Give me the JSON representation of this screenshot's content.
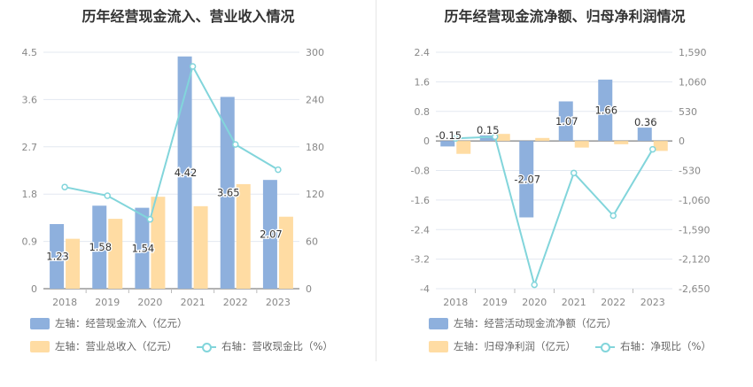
{
  "colors": {
    "bar_primary": "#8eb0dd",
    "bar_secondary": "#ffdca3",
    "line": "#82d5db",
    "axis_text": "#888888",
    "grid": "#e3e8f0"
  },
  "chart_data": [
    {
      "type": "bar",
      "title": "历年经营现金流入、营业收入情况",
      "categories": [
        "2018",
        "2019",
        "2020",
        "2021",
        "2022",
        "2023"
      ],
      "left_axis": {
        "min": 0,
        "max": 4.5,
        "ticks": [
          "0",
          "0.9",
          "1.8",
          "2.7",
          "3.6",
          "4.5"
        ]
      },
      "right_axis": {
        "min": 0,
        "max": 300,
        "ticks": [
          "0",
          "60",
          "120",
          "180",
          "240",
          "300"
        ]
      },
      "series": [
        {
          "name": "左轴：经营现金流入（亿元）",
          "type": "bar",
          "axis": "left",
          "values": [
            1.23,
            1.58,
            1.54,
            4.42,
            3.65,
            2.07
          ],
          "labels": [
            "1.23",
            "1.58",
            "1.54",
            "4.42",
            "3.65",
            "2.07"
          ]
        },
        {
          "name": "左轴：营业总收入（亿元）",
          "type": "bar",
          "axis": "left",
          "values": [
            0.95,
            1.33,
            1.75,
            1.57,
            1.99,
            1.37
          ]
        },
        {
          "name": "右轴：营收现金比（%）",
          "type": "line",
          "axis": "right",
          "values": [
            129,
            118,
            88,
            282,
            183,
            151
          ]
        }
      ],
      "grid": true,
      "legend_position": "bottom"
    },
    {
      "type": "bar",
      "title": "历年经营现金流净额、归母净利润情况",
      "categories": [
        "2018",
        "2019",
        "2020",
        "2021",
        "2022",
        "2023"
      ],
      "left_axis": {
        "min": -4,
        "max": 2.4,
        "ticks": [
          "-4",
          "-3.2",
          "-2.4",
          "-1.6",
          "-0.8",
          "0",
          "0.8",
          "1.6",
          "2.4"
        ]
      },
      "right_axis": {
        "min": -2650,
        "max": 1590,
        "ticks": [
          "-2,650",
          "-2,120",
          "-1,590",
          "-1,060",
          "-530",
          "0",
          "530",
          "1,060",
          "1,590"
        ]
      },
      "series": [
        {
          "name": "左轴：经营活动现金流净额（亿元）",
          "type": "bar",
          "axis": "left",
          "values": [
            -0.15,
            0.15,
            -2.07,
            1.07,
            1.66,
            0.36
          ],
          "labels": [
            "-0.15",
            "0.15",
            "-2.07",
            "1.07",
            "1.66",
            "0.36"
          ]
        },
        {
          "name": "左轴：归母净利润（亿元）",
          "type": "bar",
          "axis": "left",
          "values": [
            -0.35,
            0.19,
            0.08,
            -0.18,
            -0.09,
            -0.27
          ]
        },
        {
          "name": "右轴：净现比（%）",
          "type": "line",
          "axis": "right",
          "values": [
            45,
            75,
            -2580,
            -575,
            -1340,
            -150
          ]
        }
      ],
      "grid": true,
      "legend_position": "bottom"
    }
  ]
}
